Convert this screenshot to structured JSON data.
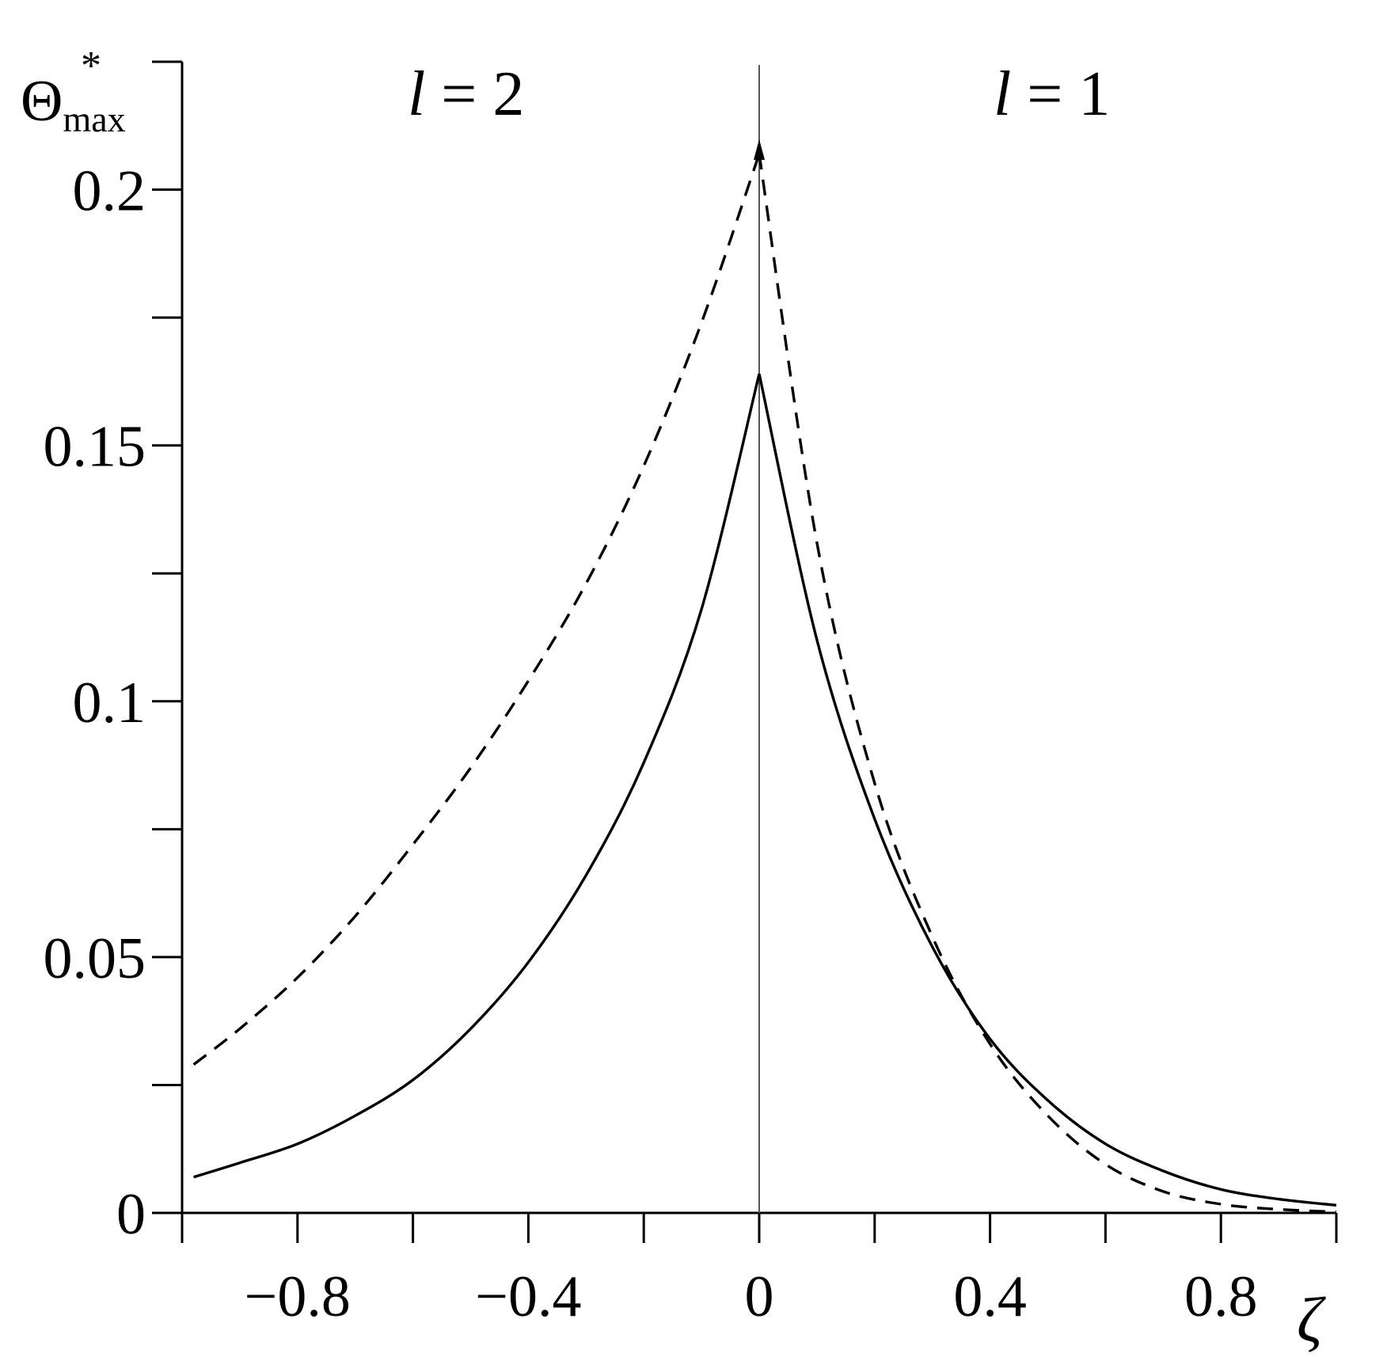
{
  "chart_data": {
    "type": "line",
    "xlabel": "ζ",
    "ylabel": {
      "main": "Θ",
      "superscript": "*",
      "subscript": "max"
    },
    "xlim": [
      -1.0,
      1.0
    ],
    "ylim": [
      0,
      0.225
    ],
    "x_tick_labels": [
      {
        "value": -0.8,
        "label": "−0.8"
      },
      {
        "value": -0.4,
        "label": "−0.4"
      },
      {
        "value": 0,
        "label": "0"
      },
      {
        "value": 0.4,
        "label": "0.4"
      },
      {
        "value": 0.8,
        "label": "0.8"
      }
    ],
    "x_minor_ticks": [
      -1.0,
      -0.6,
      -0.2,
      0.2,
      0.6,
      1.0
    ],
    "y_tick_labels": [
      {
        "value": 0,
        "label": "0"
      },
      {
        "value": 0.05,
        "label": "0.05"
      },
      {
        "value": 0.1,
        "label": "0.1"
      },
      {
        "value": 0.15,
        "label": "0.15"
      },
      {
        "value": 0.2,
        "label": "0.2"
      }
    ],
    "y_minor_ticks": [
      0.025,
      0.075,
      0.125,
      0.175,
      0.225
    ],
    "annotations": [
      {
        "text_parts": [
          "l",
          " = 2"
        ],
        "position": "upper-left"
      },
      {
        "text_parts": [
          "l",
          " = 1"
        ],
        "position": "upper-right"
      }
    ],
    "vertical_line": {
      "x": 0,
      "arrow_to_y": 0.208
    },
    "grid": false,
    "legend": "none",
    "series": [
      {
        "style": "solid",
        "x": [
          -0.98,
          -0.9,
          -0.8,
          -0.7,
          -0.6,
          -0.5,
          -0.4,
          -0.3,
          -0.2,
          -0.1,
          0,
          0.1,
          0.2,
          0.3,
          0.4,
          0.5,
          0.6,
          0.7,
          0.8,
          0.9,
          1.0
        ],
        "y": [
          0.007,
          0.0098,
          0.0135,
          0.019,
          0.026,
          0.036,
          0.049,
          0.066,
          0.088,
          0.118,
          0.164,
          0.112,
          0.077,
          0.052,
          0.034,
          0.022,
          0.0135,
          0.0082,
          0.0046,
          0.0027,
          0.0015
        ]
      },
      {
        "style": "dashed",
        "x": [
          -0.98,
          -0.9,
          -0.8,
          -0.7,
          -0.6,
          -0.5,
          -0.4,
          -0.3,
          -0.2,
          -0.1,
          0,
          0.1,
          0.2,
          0.3,
          0.4,
          0.5,
          0.6,
          0.7,
          0.8,
          0.9,
          1.0
        ],
        "y": [
          0.029,
          0.036,
          0.046,
          0.058,
          0.072,
          0.087,
          0.104,
          0.123,
          0.146,
          0.174,
          0.207,
          0.131,
          0.084,
          0.054,
          0.033,
          0.019,
          0.0095,
          0.0042,
          0.0017,
          0.0007,
          0.0002
        ]
      }
    ]
  }
}
